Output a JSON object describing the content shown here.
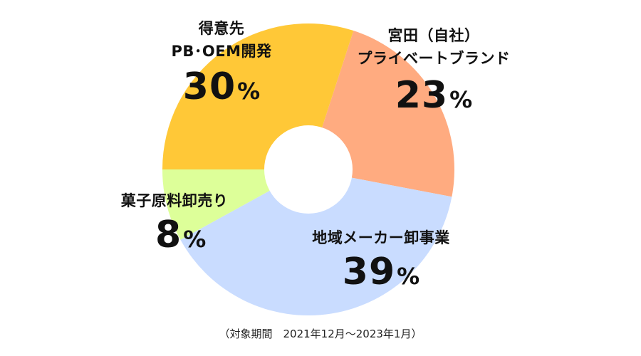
{
  "chart_data": {
    "type": "pie",
    "style": "donut",
    "slices": [
      {
        "name": "宮田（自社）プライベートブランド",
        "name_lines": [
          "宮田（自社）",
          "プライベートブランド"
        ],
        "value": 23,
        "value_label": "23",
        "unit": "%",
        "color": "#FFAB80"
      },
      {
        "name": "地域メーカー卸事業",
        "name_lines": [
          "地域メーカー卸事業"
        ],
        "value": 39,
        "value_label": "39",
        "unit": "%",
        "color": "#C9DCFF"
      },
      {
        "name": "菓子原料卸売り",
        "name_lines": [
          "菓子原料卸売り"
        ],
        "value": 8,
        "value_label": "8",
        "unit": "%",
        "color": "#DDFF99"
      },
      {
        "name": "得意先PB・OEM開発",
        "name_lines": [
          "得意先",
          "PB･OEM開発"
        ],
        "value": 30,
        "value_label": "30",
        "unit": "%",
        "color": "#FFC837"
      }
    ],
    "start_angle_deg": 18,
    "direction": "clockwise",
    "legend": "none",
    "footnote": "（対象期間　2021年12月～2023年1月）"
  }
}
